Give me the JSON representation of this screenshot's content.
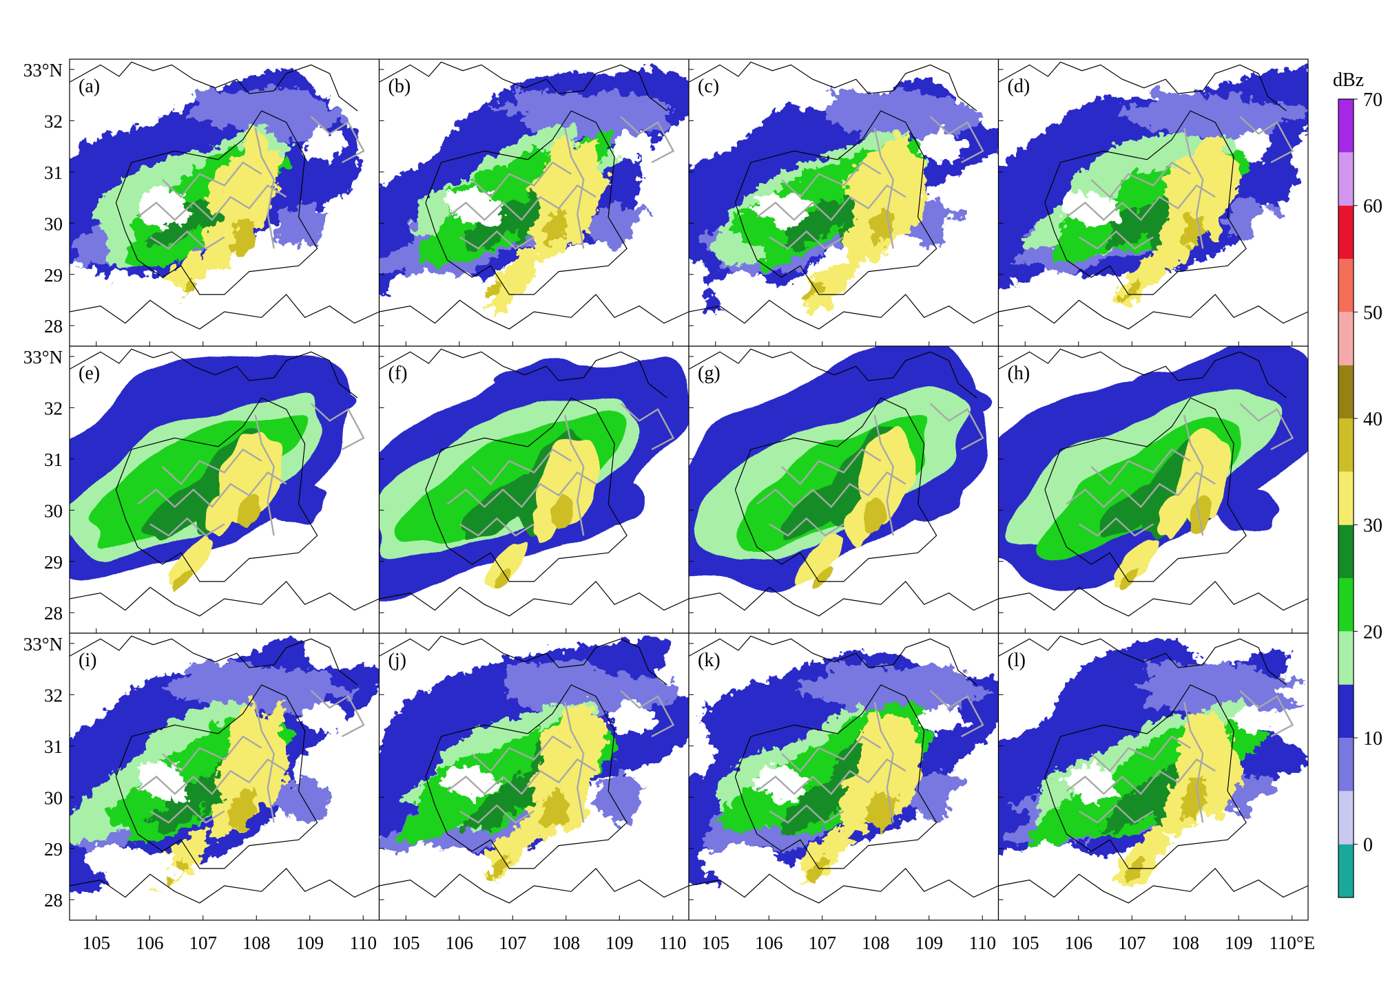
{
  "figure": {
    "panels": [
      {
        "label": "(a)",
        "row": 0,
        "col": 0
      },
      {
        "label": "(b)",
        "row": 0,
        "col": 1
      },
      {
        "label": "(c)",
        "row": 0,
        "col": 2
      },
      {
        "label": "(d)",
        "row": 0,
        "col": 3
      },
      {
        "label": "(e)",
        "row": 1,
        "col": 0
      },
      {
        "label": "(f)",
        "row": 1,
        "col": 1
      },
      {
        "label": "(g)",
        "row": 1,
        "col": 2
      },
      {
        "label": "(h)",
        "row": 1,
        "col": 3
      },
      {
        "label": "(i)",
        "row": 2,
        "col": 0
      },
      {
        "label": "(j)",
        "row": 2,
        "col": 1
      },
      {
        "label": "(k)",
        "row": 2,
        "col": 2
      },
      {
        "label": "(l)",
        "row": 2,
        "col": 3
      }
    ],
    "lat_labels": [
      "33°N",
      "32",
      "31",
      "30",
      "29",
      "28"
    ],
    "lat_values": [
      33,
      32,
      31,
      30,
      29,
      28
    ],
    "lon_labels": [
      [
        "105",
        "106",
        "107",
        "108",
        "109",
        "110"
      ],
      [
        "105",
        "106",
        "107",
        "108",
        "109",
        "110"
      ],
      [
        "105",
        "106",
        "107",
        "108",
        "109",
        "110"
      ],
      [
        "105",
        "106",
        "107",
        "108",
        "109",
        "110°E"
      ]
    ],
    "lon_values": [
      105,
      106,
      107,
      108,
      109,
      110
    ],
    "lon_range": [
      104.5,
      110.3
    ],
    "lat_range": [
      27.6,
      33.2
    ],
    "colorbar": {
      "unit": "dBz",
      "tick_labels": [
        "0",
        "10",
        "20",
        "30",
        "40",
        "50",
        "60",
        "70"
      ],
      "tick_values": [
        0,
        10,
        20,
        30,
        40,
        50,
        60,
        70
      ],
      "range": [
        -5,
        70
      ],
      "levels": [
        {
          "from": -5,
          "to": 0,
          "color": "#1aa89a"
        },
        {
          "from": 0,
          "to": 5,
          "color": "#c8c8f0"
        },
        {
          "from": 5,
          "to": 10,
          "color": "#7878e0"
        },
        {
          "from": 10,
          "to": 15,
          "color": "#2a2ac8"
        },
        {
          "from": 15,
          "to": 20,
          "color": "#a8f0a8"
        },
        {
          "from": 20,
          "to": 25,
          "color": "#1ed21e"
        },
        {
          "from": 25,
          "to": 30,
          "color": "#168c28"
        },
        {
          "from": 30,
          "to": 35,
          "color": "#f5ec6e"
        },
        {
          "from": 35,
          "to": 40,
          "color": "#cdbe28"
        },
        {
          "from": 40,
          "to": 45,
          "color": "#968214"
        },
        {
          "from": 45,
          "to": 50,
          "color": "#f5aaaa"
        },
        {
          "from": 50,
          "to": 55,
          "color": "#f56e5a"
        },
        {
          "from": 55,
          "to": 60,
          "color": "#e6142d"
        },
        {
          "from": 60,
          "to": 65,
          "color": "#d296f0"
        },
        {
          "from": 65,
          "to": 70,
          "color": "#a528e6"
        }
      ]
    }
  }
}
